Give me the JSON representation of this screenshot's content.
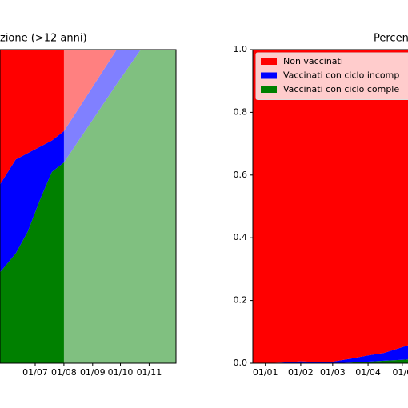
{
  "chart_data": [
    {
      "type": "area",
      "title": "zione (>12 anni)",
      "x": [
        144,
        161,
        174,
        187,
        200,
        213,
        270,
        296,
        334
      ],
      "xlim": [
        144,
        334
      ],
      "xticks": [
        {
          "value": 182,
          "label": "01/07"
        },
        {
          "value": 213,
          "label": "01/08"
        },
        {
          "value": 244,
          "label": "01/09"
        },
        {
          "value": 274,
          "label": "01/10"
        },
        {
          "value": 305,
          "label": "01/11"
        }
      ],
      "ylim": [
        0,
        1
      ],
      "forecast_from": 213,
      "series": [
        {
          "color": "#008000",
          "values": [
            0.29,
            0.35,
            0.42,
            0.52,
            0.61,
            0.64,
            0.89,
            1.0,
            1.0
          ]
        },
        {
          "color": "#0000ff",
          "values": [
            0.28,
            0.3,
            0.25,
            0.17,
            0.1,
            0.1,
            0.11,
            0,
            0
          ]
        },
        {
          "color": "#ff0000",
          "values": [
            0.43,
            0.35,
            0.33,
            0.31,
            0.29,
            0.26,
            0,
            0,
            0
          ]
        }
      ]
    },
    {
      "type": "area",
      "title": "Percen",
      "x": [
        -10,
        1,
        20,
        32,
        45,
        60,
        75,
        91,
        105,
        126
      ],
      "xlim": [
        -10,
        126
      ],
      "xticks": [
        {
          "value": 1,
          "label": "01/01"
        },
        {
          "value": 32,
          "label": "01/02"
        },
        {
          "value": 60,
          "label": "01/03"
        },
        {
          "value": 91,
          "label": "01/04"
        },
        {
          "value": 121,
          "label": "01/0"
        }
      ],
      "ylim": [
        0,
        1
      ],
      "yticks": [
        {
          "value": 0,
          "label": "0.0"
        },
        {
          "value": 0.2,
          "label": "0.2"
        },
        {
          "value": 0.4,
          "label": "0.4"
        },
        {
          "value": 0.6,
          "label": "0.6"
        },
        {
          "value": 0.8,
          "label": "0.8"
        },
        {
          "value": 1,
          "label": "1.0"
        }
      ],
      "legend": "upper left",
      "series": [
        {
          "name": "Vaccinati con ciclo comple",
          "color": "#008000",
          "values": [
            0,
            0,
            0,
            0,
            0,
            0,
            0.002,
            0.005,
            0.008,
            0.012
          ]
        },
        {
          "name": "Vaccinati con ciclo incomp",
          "color": "#0000ff",
          "values": [
            0,
            0,
            0.003,
            0.006,
            0.004,
            0.005,
            0.012,
            0.02,
            0.025,
            0.045
          ]
        },
        {
          "name": "Non vaccinati",
          "color": "#ff0000",
          "values": [
            1,
            1,
            0.997,
            0.994,
            0.996,
            0.995,
            0.986,
            0.975,
            0.967,
            0.943
          ]
        }
      ]
    }
  ]
}
